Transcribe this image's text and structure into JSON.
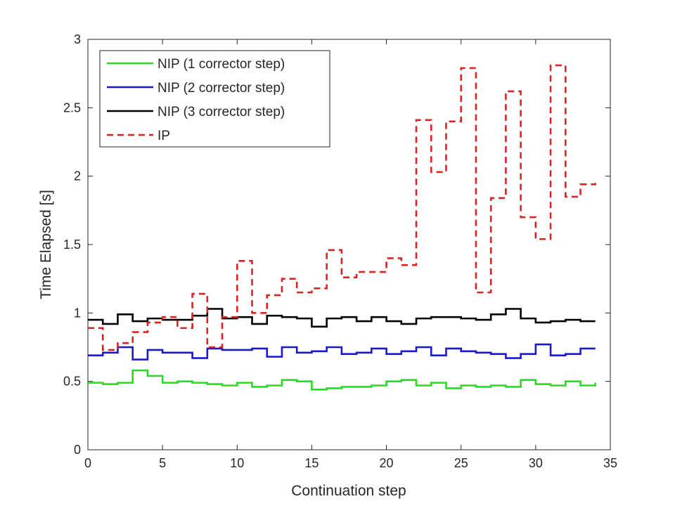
{
  "chart_data": {
    "type": "line",
    "step": true,
    "xlabel": "Continuation step",
    "ylabel": "Time Elapsed [s]",
    "xlim": [
      0,
      35
    ],
    "ylim": [
      0,
      3
    ],
    "x_ticks": [
      "0",
      "5",
      "10",
      "15",
      "20",
      "25",
      "30",
      "35"
    ],
    "y_ticks": [
      "0",
      "0.5",
      "1",
      "1.5",
      "2",
      "2.5",
      "3"
    ],
    "grid": false,
    "legend_position": "top-left",
    "x": [
      0,
      1,
      2,
      3,
      4,
      5,
      6,
      7,
      8,
      9,
      10,
      11,
      12,
      13,
      14,
      15,
      16,
      17,
      18,
      19,
      20,
      21,
      22,
      23,
      24,
      25,
      26,
      27,
      28,
      29,
      30,
      31,
      32,
      33,
      34
    ],
    "series": [
      {
        "name": "NIP (1 corrector step)",
        "color": "#22dd22",
        "dash": "solid",
        "values": [
          0.49,
          0.48,
          0.49,
          0.58,
          0.54,
          0.49,
          0.5,
          0.49,
          0.48,
          0.47,
          0.49,
          0.46,
          0.47,
          0.51,
          0.5,
          0.44,
          0.45,
          0.46,
          0.46,
          0.47,
          0.5,
          0.51,
          0.47,
          0.49,
          0.45,
          0.47,
          0.46,
          0.47,
          0.46,
          0.51,
          0.48,
          0.47,
          0.5,
          0.47,
          0.49
        ]
      },
      {
        "name": "NIP (2 corrector step)",
        "color": "#1a1acc",
        "dash": "solid",
        "values": [
          0.69,
          0.71,
          0.75,
          0.66,
          0.73,
          0.71,
          0.71,
          0.67,
          0.74,
          0.73,
          0.73,
          0.74,
          0.68,
          0.75,
          0.71,
          0.72,
          0.75,
          0.7,
          0.71,
          0.74,
          0.7,
          0.72,
          0.75,
          0.69,
          0.74,
          0.72,
          0.71,
          0.7,
          0.67,
          0.7,
          0.77,
          0.69,
          0.7,
          0.74,
          0.74
        ]
      },
      {
        "name": "NIP (3 corrector step)",
        "color": "#000000",
        "dash": "solid",
        "values": [
          0.95,
          0.92,
          0.99,
          0.94,
          0.96,
          0.95,
          0.95,
          0.98,
          1.03,
          0.96,
          0.97,
          0.92,
          0.98,
          0.97,
          0.96,
          0.9,
          0.96,
          0.97,
          0.94,
          0.97,
          0.94,
          0.92,
          0.96,
          0.97,
          0.97,
          0.96,
          0.95,
          0.99,
          1.03,
          0.96,
          0.93,
          0.94,
          0.95,
          0.94,
          0.94
        ]
      },
      {
        "name": "IP",
        "color": "#dd2222",
        "dash": "dashed",
        "values": [
          0.89,
          0.73,
          0.78,
          0.86,
          0.93,
          0.97,
          0.89,
          1.14,
          0.75,
          0.97,
          1.38,
          1.0,
          1.13,
          1.25,
          1.15,
          1.18,
          1.46,
          1.26,
          1.3,
          1.3,
          1.4,
          1.35,
          2.41,
          2.03,
          2.4,
          2.79,
          1.15,
          1.84,
          2.62,
          1.7,
          1.54,
          2.81,
          1.85,
          1.94,
          1.95
        ]
      }
    ]
  }
}
